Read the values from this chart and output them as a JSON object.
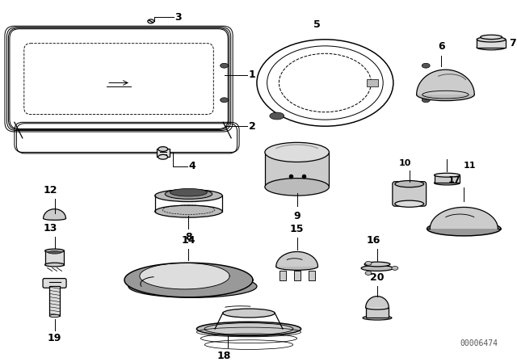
{
  "background_color": "#ffffff",
  "line_color": "#000000",
  "diagram_code": "00006474",
  "fig_w": 6.4,
  "fig_h": 4.48,
  "dpi": 100
}
